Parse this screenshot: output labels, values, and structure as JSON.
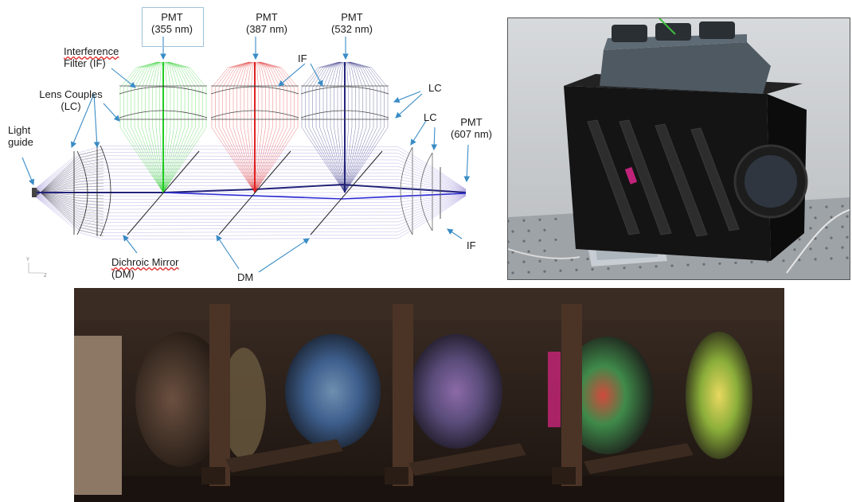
{
  "diagram": {
    "labels": {
      "pmt_355": [
        "PMT",
        "(355 nm)"
      ],
      "pmt_387": [
        "PMT",
        "(387 nm)"
      ],
      "pmt_532": [
        "PMT",
        "(532 nm)"
      ],
      "pmt_607": [
        "PMT",
        "(607 nm)"
      ],
      "interference_filter": [
        "Interference",
        "Filter (IF)"
      ],
      "lens_couples": [
        "Lens Couples",
        "(LC)"
      ],
      "light_guide": [
        "Light",
        "guide"
      ],
      "if_top": "IF",
      "lc_right_upper": "LC",
      "lc_right_lower": "LC",
      "if_right": "IF",
      "dichroic_mirror": [
        "Dichroic Mirror",
        "(DM)"
      ],
      "dm": "DM",
      "axis_y": "Y",
      "axis_z": "Z"
    },
    "colors": {
      "channel_355": "#22cc22",
      "channel_387": "#e02020",
      "channel_532": "#23237a",
      "channel_607": "#2a2ad6",
      "rays_main": "#8a7ad0",
      "arrow": "#3a8cc6"
    }
  },
  "photos": {
    "instrument_housing": {
      "icon": "instrument-photo"
    },
    "lens_row": {
      "icon": "lens-row-photo"
    }
  }
}
